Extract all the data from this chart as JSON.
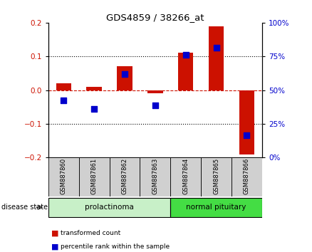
{
  "title": "GDS4859 / 38266_at",
  "samples": [
    "GSM887860",
    "GSM887861",
    "GSM887862",
    "GSM887863",
    "GSM887864",
    "GSM887865",
    "GSM887866"
  ],
  "red_bars": [
    0.02,
    0.01,
    0.07,
    -0.01,
    0.11,
    0.19,
    -0.19
  ],
  "blue_squares": [
    -0.03,
    -0.055,
    0.048,
    -0.045,
    0.105,
    0.125,
    -0.135
  ],
  "ylim": [
    -0.2,
    0.2
  ],
  "yticks_left": [
    -0.2,
    -0.1,
    0.0,
    0.1,
    0.2
  ],
  "yticks_right_labels": [
    "0%",
    "25%",
    "50%",
    "75%",
    "100%"
  ],
  "yticks_right_vals": [
    -0.2,
    -0.1,
    0.0,
    0.1,
    0.2
  ],
  "groups": [
    {
      "label": "prolactinoma",
      "indices": [
        0,
        1,
        2,
        3
      ],
      "color": "#c8f0c8"
    },
    {
      "label": "normal pituitary",
      "indices": [
        4,
        5,
        6
      ],
      "color": "#44dd44"
    }
  ],
  "bar_color": "#cc1100",
  "square_color": "#0000cc",
  "zero_line_color": "#cc1100",
  "grid_color": "#000000",
  "bar_width": 0.5,
  "square_size": 35,
  "legend_red": "transformed count",
  "legend_blue": "percentile rank within the sample",
  "disease_state_label": "disease state"
}
